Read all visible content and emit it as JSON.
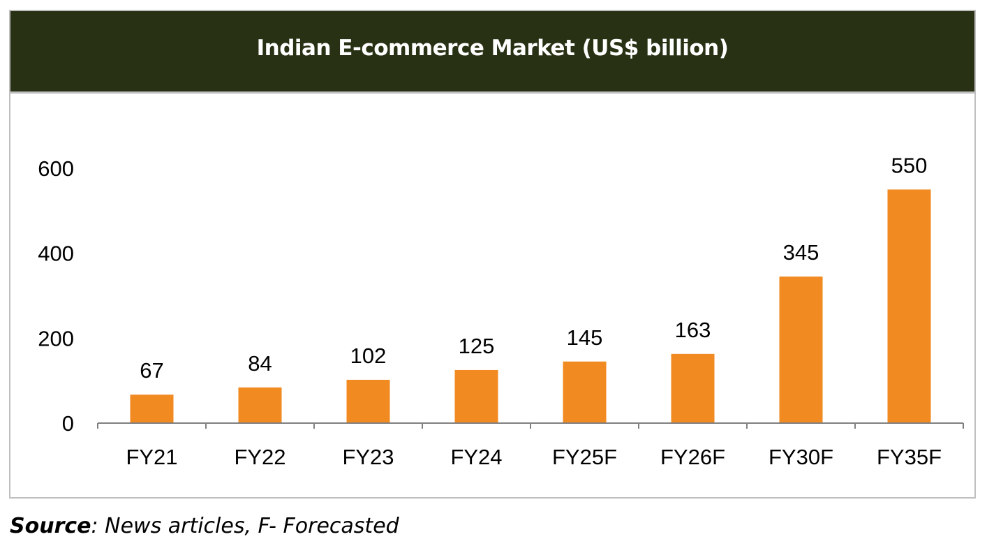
{
  "colors": {
    "header_bg": "#283114",
    "bar": "#f28a22",
    "axis": "#808080",
    "frame_border": "#bfbfbf"
  },
  "source": {
    "label": "Source",
    "text": ": News articles, F- Forecasted"
  },
  "chart_data": {
    "type": "bar",
    "title": "Indian E-commerce Market (US$ billion)",
    "xlabel": "",
    "ylabel": "",
    "categories": [
      "FY21",
      "FY22",
      "FY23",
      "FY24",
      "FY25F",
      "FY26F",
      "FY30F",
      "FY35F"
    ],
    "values": [
      67,
      84,
      102,
      125,
      145,
      163,
      345,
      550
    ],
    "data_labels": [
      "67",
      "84",
      "102",
      "125",
      "145",
      "163",
      "345",
      "550"
    ],
    "ylim": [
      0,
      600
    ],
    "yticks": [
      0,
      200,
      400,
      600
    ],
    "ytick_labels": [
      "0",
      "200",
      "400",
      "600"
    ],
    "grid": false,
    "legend": "none"
  }
}
